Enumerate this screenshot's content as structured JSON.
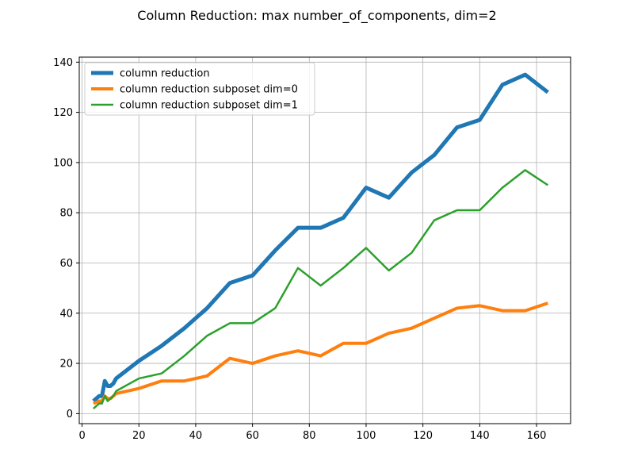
{
  "chart_data": {
    "type": "line",
    "title": "Column Reduction: max number_of_components, dim=2",
    "xlabel": "",
    "ylabel": "",
    "xlim": [
      -1.0,
      172.0
    ],
    "ylim": [
      -4.0,
      142.0
    ],
    "xticks": [
      0,
      20,
      40,
      60,
      80,
      100,
      120,
      140,
      160
    ],
    "yticks": [
      0,
      20,
      40,
      60,
      80,
      100,
      120,
      140
    ],
    "grid": true,
    "legend_position": "upper-left",
    "series": [
      {
        "name": "column reduction",
        "color": "#1f77b4",
        "width": 5,
        "x": [
          4,
          6,
          7,
          8,
          9,
          10,
          11,
          12,
          20,
          28,
          36,
          44,
          52,
          60,
          68,
          76,
          84,
          92,
          100,
          108,
          116,
          124,
          132,
          140,
          148,
          156,
          164
        ],
        "y": [
          5,
          7,
          7,
          13,
          11,
          11,
          12,
          14,
          21,
          27,
          34,
          42,
          52,
          55,
          65,
          74,
          74,
          78,
          90,
          86,
          96,
          103,
          114,
          117,
          131,
          135,
          128
        ]
      },
      {
        "name": "column reduction subposet dim=0",
        "color": "#ff7f0e",
        "width": 4,
        "x": [
          4,
          6,
          7,
          8,
          9,
          10,
          11,
          12,
          20,
          28,
          36,
          44,
          52,
          60,
          68,
          76,
          84,
          92,
          100,
          108,
          116,
          124,
          132,
          140,
          148,
          156,
          164
        ],
        "y": [
          4,
          5,
          5,
          7,
          6,
          6,
          7,
          8,
          10,
          13,
          13,
          15,
          22,
          20,
          23,
          25,
          23,
          28,
          28,
          32,
          34,
          38,
          42,
          43,
          41,
          41,
          44
        ]
      },
      {
        "name": "column reduction subposet dim=1",
        "color": "#2ca02c",
        "width": 2.5,
        "x": [
          4,
          5,
          6,
          7,
          8,
          9,
          10,
          11,
          12,
          20,
          28,
          36,
          44,
          52,
          60,
          68,
          76,
          84,
          92,
          100,
          108,
          116,
          124,
          132,
          140,
          148,
          156,
          164
        ],
        "y": [
          2,
          3,
          4,
          4,
          7,
          5,
          6,
          7,
          9,
          14,
          16,
          23,
          31,
          36,
          36,
          42,
          58,
          51,
          58,
          66,
          57,
          64,
          77,
          81,
          81,
          90,
          97,
          91
        ]
      }
    ]
  }
}
